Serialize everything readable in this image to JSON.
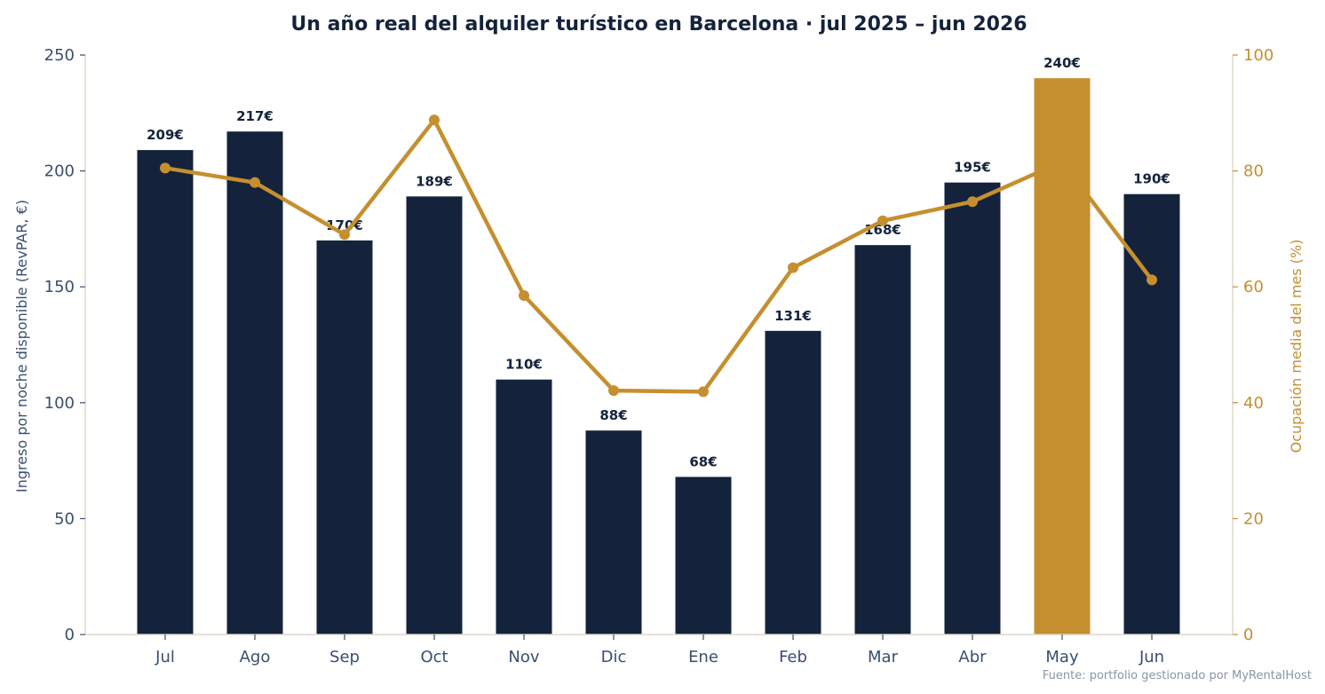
{
  "chart_data": {
    "type": "bar",
    "title": "Un año real del alquiler turístico en Barcelona · jul 2025 – jun 2026",
    "categories": [
      "Jul",
      "Ago",
      "Sep",
      "Oct",
      "Nov",
      "Dic",
      "Ene",
      "Feb",
      "Mar",
      "Abr",
      "May",
      "Jun"
    ],
    "series": [
      {
        "name": "",
        "type": "bar",
        "axis": "left",
        "values": [
          209,
          217,
          170,
          189,
          110,
          88,
          68,
          131,
          168,
          195,
          240,
          190
        ],
        "labels": [
          "209€",
          "217€",
          "170€",
          "189€",
          "110€",
          "88€",
          "68€",
          "131€",
          "168€",
          "195€",
          "240€",
          "190€"
        ],
        "highlight_index": 10
      },
      {
        "name": "",
        "type": "line",
        "axis": "right",
        "values": [
          80.5,
          78.0,
          69.0,
          88.8,
          58.5,
          42.1,
          41.9,
          63.3,
          71.4,
          74.7,
          81.6,
          61.2
        ]
      }
    ],
    "ylabel": "Ingreso por noche disponible (RevPAR, €)",
    "ylim": [
      0,
      250
    ],
    "yticks": [
      0,
      50,
      100,
      150,
      200,
      250
    ],
    "y2label": "Ocupación media del mes (%)",
    "y2lim": [
      0,
      100
    ],
    "y2ticks": [
      0,
      20,
      40,
      60,
      80,
      100
    ],
    "grid": false,
    "colors": {
      "bar": "#14233b",
      "highlight": "#c58f2f",
      "line": "#c58f2f",
      "text": "#14233b",
      "left_axis_text": "#3a4f6e",
      "right_axis_text": "#c58f2f",
      "spine": "#ddd8c8",
      "source_text": "#8b95a3"
    }
  },
  "source": "Fuente: portfolio gestionado por MyRentalHost"
}
